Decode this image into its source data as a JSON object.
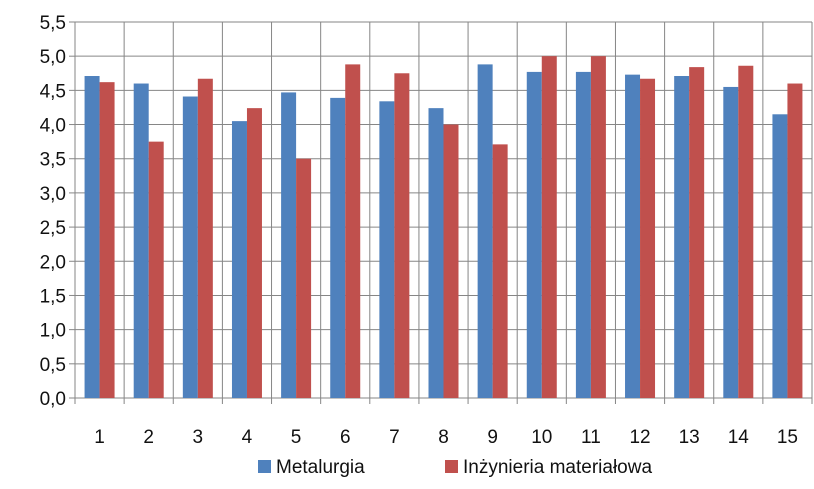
{
  "chart_data": {
    "type": "bar",
    "categories": [
      "1",
      "2",
      "3",
      "4",
      "5",
      "6",
      "7",
      "8",
      "9",
      "10",
      "11",
      "12",
      "13",
      "14",
      "15"
    ],
    "series": [
      {
        "name": "Metalurgia",
        "color": "#4F81BD",
        "values": [
          4.71,
          4.6,
          4.41,
          4.05,
          4.47,
          4.39,
          4.34,
          4.24,
          4.88,
          4.77,
          4.77,
          4.73,
          4.71,
          4.55,
          4.15
        ]
      },
      {
        "name": "Inżynieria materiałowa",
        "color": "#C0504D",
        "values": [
          4.62,
          3.75,
          4.67,
          4.24,
          3.5,
          4.88,
          4.75,
          4.0,
          3.71,
          5.0,
          5.0,
          4.67,
          4.84,
          4.86,
          4.6
        ]
      }
    ],
    "ylim": [
      0,
      5.5
    ],
    "yticks": [
      "0,0",
      "0,5",
      "1,0",
      "1,5",
      "2,0",
      "2,5",
      "3,0",
      "3,5",
      "4,0",
      "4,5",
      "5,0",
      "5,5"
    ],
    "grid": true,
    "legend": "bottom",
    "title": "",
    "xlabel": "",
    "ylabel": ""
  }
}
